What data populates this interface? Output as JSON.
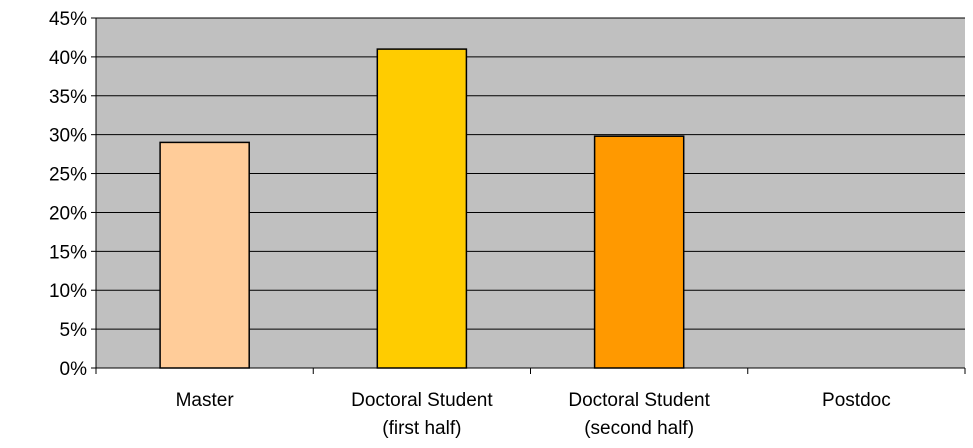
{
  "chart_data": {
    "type": "bar",
    "categories": [
      [
        "Master"
      ],
      [
        "Doctoral Student",
        "(first half)"
      ],
      [
        "Doctoral Student",
        "(second half)"
      ],
      [
        "Postdoc"
      ]
    ],
    "values": [
      29,
      41,
      29.8,
      0
    ],
    "bar_colors": [
      "#FFCC99",
      "#FFCC00",
      "#FF9900",
      "#FFFFFF"
    ],
    "ylim": [
      0,
      45
    ],
    "ytick_step": 5,
    "ytick_labels": [
      "0%",
      "5%",
      "10%",
      "15%",
      "20%",
      "25%",
      "30%",
      "35%",
      "40%",
      "45%"
    ],
    "grid": true,
    "plot_background": "#C0C0C0"
  }
}
